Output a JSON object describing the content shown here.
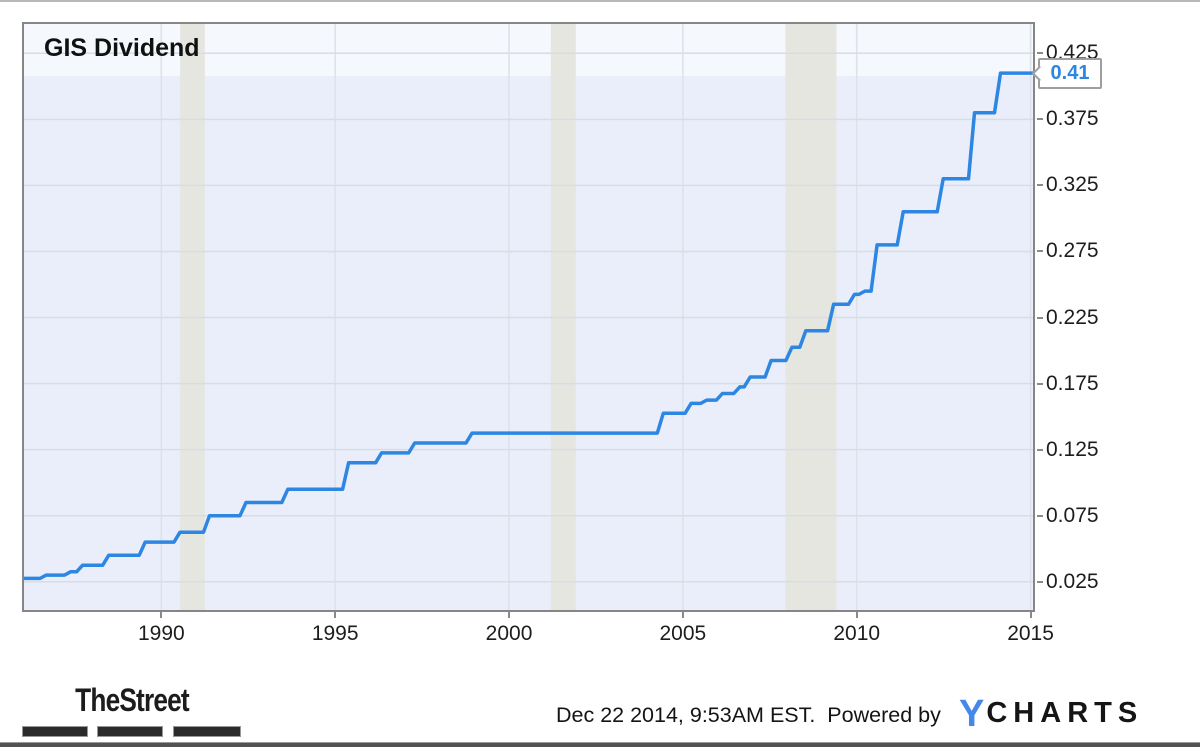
{
  "header": {
    "title": "GIS Dividend"
  },
  "callout": {
    "value": "0.41"
  },
  "footer": {
    "brand": "TheStreet",
    "timestamp": "Dec 22 2014, 9:53AM EST.  Powered by",
    "logo_y": "Y",
    "logo_charts": "CHARTS"
  },
  "colors": {
    "line": "#2d87e2",
    "callout_text": "#2d87e2",
    "plot_bg": "#e9eefa",
    "plot_bg_top": "#f5f8fd",
    "grid_h": "#d8dce3",
    "grid_v": "#dde1e8",
    "recession_band": "#e6e6e0",
    "border": "#868686",
    "logo_y_blue": "#4687ea"
  },
  "chart_data": {
    "type": "line",
    "step": true,
    "title": "GIS Dividend",
    "xlabel": "",
    "ylabel": "",
    "grid": true,
    "legend": "none",
    "xlim": [
      1986.05,
      2015.07
    ],
    "ylim": [
      0.0036,
      0.4472
    ],
    "x_tick_values": [
      1990,
      1995,
      2000,
      2005,
      2010,
      2015
    ],
    "y_tick_values": [
      0.425,
      0.375,
      0.325,
      0.275,
      0.225,
      0.175,
      0.125,
      0.075,
      0.025
    ],
    "recession_bands": [
      [
        1990.54,
        1991.25
      ],
      [
        2001.2,
        2001.92
      ],
      [
        2007.95,
        2009.42
      ]
    ],
    "end_x": 2015.07,
    "last_value": 0.41,
    "series": [
      {
        "name": "GIS Dividend",
        "points": [
          [
            1986.05,
            0.0275
          ],
          [
            1986.6,
            0.03
          ],
          [
            1987.3,
            0.0325
          ],
          [
            1987.65,
            0.0375
          ],
          [
            1988.4,
            0.045
          ],
          [
            1989.45,
            0.055
          ],
          [
            1990.45,
            0.0625
          ],
          [
            1991.3,
            0.075
          ],
          [
            1992.35,
            0.085
          ],
          [
            1993.55,
            0.095
          ],
          [
            1995.3,
            0.115
          ],
          [
            1996.25,
            0.1225
          ],
          [
            1997.2,
            0.13
          ],
          [
            1998.85,
            0.1375
          ],
          [
            2004.35,
            0.1525
          ],
          [
            2005.15,
            0.16
          ],
          [
            2005.6,
            0.1625
          ],
          [
            2006.05,
            0.1675
          ],
          [
            2006.55,
            0.1725
          ],
          [
            2006.85,
            0.18
          ],
          [
            2007.45,
            0.1925
          ],
          [
            2008.05,
            0.2025
          ],
          [
            2008.45,
            0.215
          ],
          [
            2009.25,
            0.235
          ],
          [
            2009.85,
            0.2425
          ],
          [
            2010.15,
            0.245
          ],
          [
            2010.5,
            0.28
          ],
          [
            2011.25,
            0.305
          ],
          [
            2012.4,
            0.33
          ],
          [
            2013.3,
            0.38
          ],
          [
            2014.05,
            0.41
          ]
        ]
      }
    ]
  }
}
